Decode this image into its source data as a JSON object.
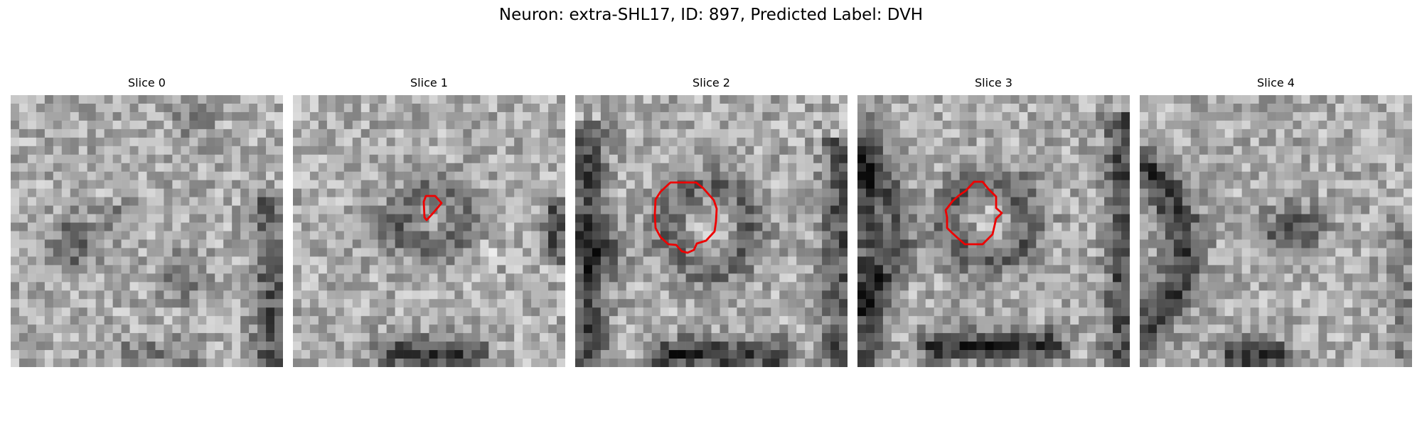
{
  "figure": {
    "title": "Neuron: extra-SHL17, ID: 897, Predicted Label: DVH"
  },
  "panels": [
    {
      "title": "Slice 0",
      "has_outline": false,
      "outline_color": "#ee0000"
    },
    {
      "title": "Slice 1",
      "has_outline": true,
      "outline_color": "#ee0000"
    },
    {
      "title": "Slice 2",
      "has_outline": true,
      "outline_color": "#ee0000"
    },
    {
      "title": "Slice 3",
      "has_outline": true,
      "outline_color": "#ee0000"
    },
    {
      "title": "Slice 4",
      "has_outline": false,
      "outline_color": "#ee0000"
    }
  ],
  "colormap": "gray"
}
